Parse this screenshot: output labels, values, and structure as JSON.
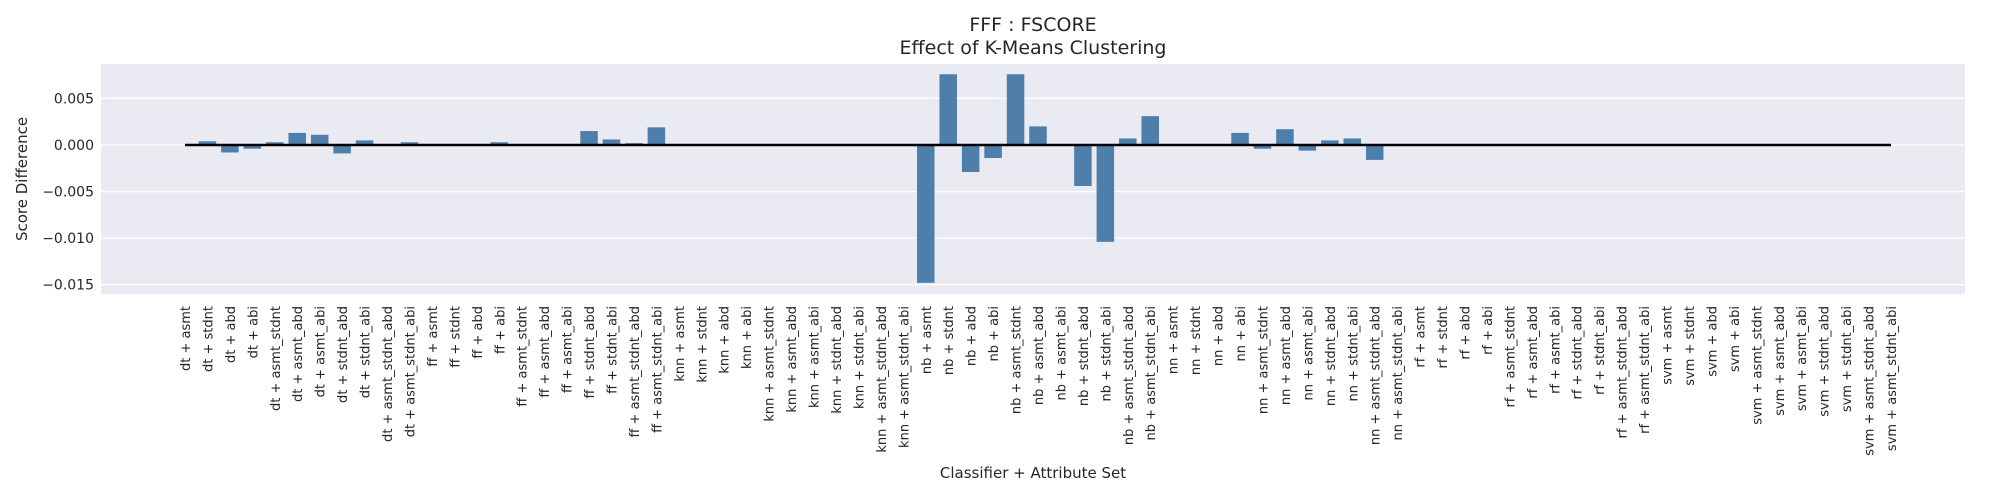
{
  "chart_data": {
    "type": "bar",
    "title": "FFF : FSCORE",
    "subtitle": "Effect of K-Means Clustering",
    "xlabel": "Classifier + Attribute Set",
    "ylabel": "Score Difference",
    "ylim": [
      -0.016,
      0.0087
    ],
    "yticks": [
      0.005,
      0.0,
      -0.005,
      -0.01,
      -0.015
    ],
    "ytick_labels": [
      "0.005",
      "0.000",
      "−0.005",
      "−0.010",
      "−0.015"
    ],
    "grid": true,
    "bar_color": "#4e7fab",
    "background_color": "#eaeaf2",
    "zero_line_color": "#000000",
    "categories": [
      "dt + asmt",
      "dt + stdnt",
      "dt + abd",
      "dt + abi",
      "dt + asmt_stdnt",
      "dt + asmt_abd",
      "dt + asmt_abi",
      "dt + stdnt_abd",
      "dt + stdnt_abi",
      "dt + asmt_stdnt_abd",
      "dt + asmt_stdnt_abi",
      "ff + asmt",
      "ff + stdnt",
      "ff + abd",
      "ff + abi",
      "ff + asmt_stdnt",
      "ff + asmt_abd",
      "ff + asmt_abi",
      "ff + stdnt_abd",
      "ff + stdnt_abi",
      "ff + asmt_stdnt_abd",
      "ff + asmt_stdnt_abi",
      "knn + asmt",
      "knn + stdnt",
      "knn + abd",
      "knn + abi",
      "knn + asmt_stdnt",
      "knn + asmt_abd",
      "knn + asmt_abi",
      "knn + stdnt_abd",
      "knn + stdnt_abi",
      "knn + asmt_stdnt_abd",
      "knn + asmt_stdnt_abi",
      "nb + asmt",
      "nb + stdnt",
      "nb + abd",
      "nb + abi",
      "nb + asmt_stdnt",
      "nb + asmt_abd",
      "nb + asmt_abi",
      "nb + stdnt_abd",
      "nb + stdnt_abi",
      "nb + asmt_stdnt_abd",
      "nb + asmt_stdnt_abi",
      "nn + asmt",
      "nn + stdnt",
      "nn + abd",
      "nn + abi",
      "nn + asmt_stdnt",
      "nn + asmt_abd",
      "nn + asmt_abi",
      "nn + stdnt_abd",
      "nn + stdnt_abi",
      "nn + asmt_stdnt_abd",
      "nn + asmt_stdnt_abi",
      "rf + asmt",
      "rf + stdnt",
      "rf + abd",
      "rf + abi",
      "rf + asmt_stdnt",
      "rf + asmt_abd",
      "rf + asmt_abi",
      "rf + stdnt_abd",
      "rf + stdnt_abi",
      "rf + asmt_stdnt_abd",
      "rf + asmt_stdnt_abi",
      "svm + asmt",
      "svm + stdnt",
      "svm + abd",
      "svm + abi",
      "svm + asmt_stdnt",
      "svm + asmt_abd",
      "svm + asmt_abi",
      "svm + stdnt_abd",
      "svm + stdnt_abi",
      "svm + asmt_stdnt_abd",
      "svm + asmt_stdnt_abi"
    ],
    "values": [
      0.0,
      0.0004,
      -0.0008,
      -0.0004,
      0.0003,
      0.0013,
      0.0011,
      -0.0009,
      0.0005,
      0.0001,
      0.0003,
      0.0,
      0.0,
      0.0,
      0.0003,
      0.0,
      0.0,
      0.0,
      0.0015,
      0.0006,
      0.0002,
      0.0019,
      0.0,
      0.0,
      0.0,
      0.0,
      0.0,
      0.0,
      0.0,
      0.0,
      0.0,
      0.0,
      0.0,
      -0.0148,
      0.0076,
      -0.0029,
      -0.0014,
      0.0076,
      0.002,
      0.0,
      -0.0044,
      -0.0104,
      0.0007,
      0.0031,
      0.0,
      0.0,
      0.0,
      0.0013,
      -0.0004,
      0.0017,
      -0.0006,
      0.0005,
      0.0007,
      -0.0016,
      0.0,
      0.0,
      0.0,
      0.0,
      0.0,
      0.0,
      0.0,
      0.0,
      0.0,
      0.0,
      0.0,
      0.0,
      0.0,
      0.0,
      0.0,
      0.0,
      0.0,
      0.0,
      0.0,
      0.0,
      0.0,
      0.0,
      0.0
    ]
  }
}
